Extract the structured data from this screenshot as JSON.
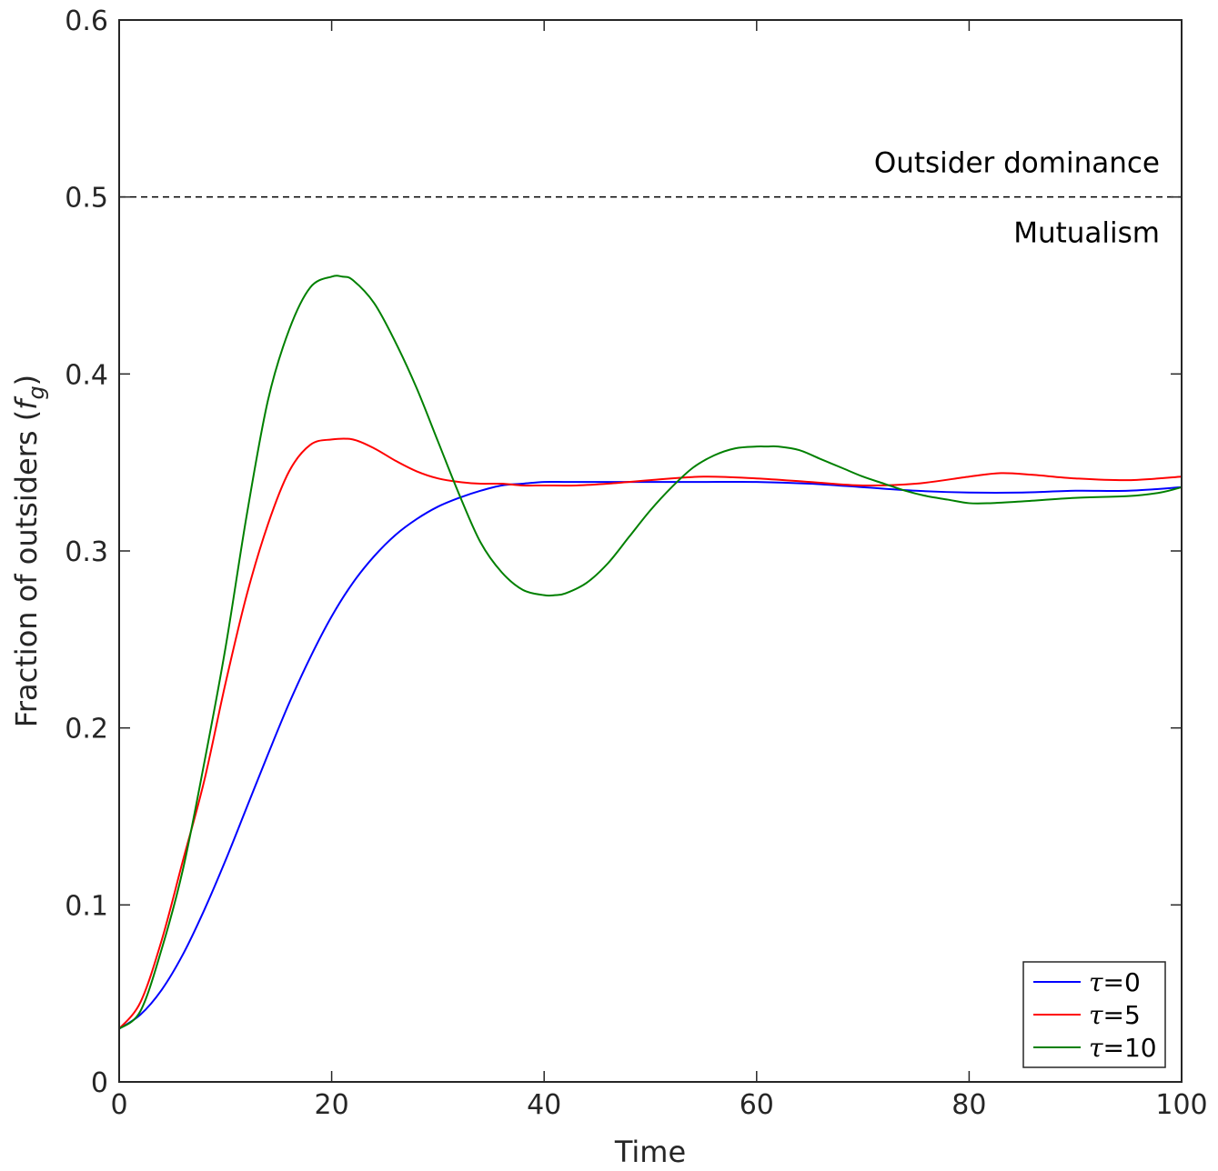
{
  "chart_data": {
    "type": "line",
    "xlabel": "Time",
    "ylabel": "Fraction of outsiders (",
    "ylabel_var": "f",
    "ylabel_sub": "g",
    "ylabel_close": ")",
    "xlim": [
      0,
      100
    ],
    "ylim": [
      0,
      0.6
    ],
    "xticks": [
      0,
      20,
      40,
      60,
      80,
      100
    ],
    "yticks": [
      0,
      0.1,
      0.2,
      0.3,
      0.4,
      0.5,
      0.6
    ],
    "xtick_labels": [
      "0",
      "20",
      "40",
      "60",
      "80",
      "100"
    ],
    "ytick_labels": [
      "0",
      "0.1",
      "0.2",
      "0.3",
      "0.4",
      "0.5",
      "0.6"
    ],
    "grid": false,
    "legend_placement": "bottom-right",
    "reference_line": {
      "y": 0.5,
      "style": "dashed",
      "color": "#000000"
    },
    "annotations": {
      "above": "Outsider dominance",
      "below": "Mutualism"
    },
    "series": [
      {
        "name_symbol": "τ",
        "name_value": "=0",
        "color": "#0000ff",
        "x": [
          0,
          2,
          4,
          6,
          8,
          10,
          12,
          14,
          16,
          18,
          20,
          22,
          24,
          26,
          28,
          30,
          32,
          34,
          36,
          38,
          40,
          42,
          45,
          50,
          55,
          60,
          65,
          70,
          75,
          80,
          85,
          90,
          95,
          100
        ],
        "y": [
          0.03,
          0.038,
          0.052,
          0.072,
          0.097,
          0.125,
          0.155,
          0.185,
          0.214,
          0.24,
          0.263,
          0.282,
          0.297,
          0.309,
          0.318,
          0.325,
          0.33,
          0.334,
          0.337,
          0.338,
          0.339,
          0.339,
          0.339,
          0.339,
          0.339,
          0.339,
          0.338,
          0.336,
          0.334,
          0.333,
          0.333,
          0.334,
          0.334,
          0.336
        ]
      },
      {
        "name_symbol": "τ",
        "name_value": "=5",
        "color": "#ff0000",
        "x": [
          0,
          2,
          4,
          6,
          8,
          10,
          12,
          14,
          16,
          18,
          20,
          22,
          24,
          26,
          28,
          30,
          32,
          34,
          36,
          38,
          40,
          43,
          46,
          50,
          55,
          60,
          65,
          70,
          75,
          80,
          83,
          86,
          90,
          95,
          100
        ],
        "y": [
          0.03,
          0.045,
          0.08,
          0.125,
          0.17,
          0.225,
          0.275,
          0.315,
          0.345,
          0.36,
          0.363,
          0.363,
          0.358,
          0.351,
          0.345,
          0.341,
          0.339,
          0.338,
          0.338,
          0.337,
          0.337,
          0.337,
          0.338,
          0.34,
          0.342,
          0.341,
          0.339,
          0.337,
          0.338,
          0.342,
          0.344,
          0.343,
          0.341,
          0.34,
          0.342
        ]
      },
      {
        "name_symbol": "τ",
        "name_value": "=10",
        "color": "#008000",
        "x": [
          0,
          2,
          4,
          6,
          8,
          10,
          12,
          14,
          16,
          18,
          20,
          21,
          22,
          24,
          26,
          28,
          30,
          32,
          34,
          36,
          38,
          40,
          41,
          42,
          44,
          46,
          48,
          50,
          52,
          54,
          56,
          58,
          60,
          61,
          62,
          64,
          66,
          68,
          70,
          72,
          74,
          76,
          78,
          80,
          82,
          85,
          90,
          95,
          98,
          100
        ],
        "y": [
          0.03,
          0.04,
          0.075,
          0.12,
          0.18,
          0.245,
          0.32,
          0.385,
          0.425,
          0.449,
          0.455,
          0.455,
          0.453,
          0.44,
          0.418,
          0.392,
          0.362,
          0.332,
          0.305,
          0.288,
          0.278,
          0.275,
          0.275,
          0.276,
          0.282,
          0.293,
          0.308,
          0.323,
          0.336,
          0.347,
          0.354,
          0.358,
          0.359,
          0.359,
          0.359,
          0.357,
          0.352,
          0.347,
          0.342,
          0.338,
          0.334,
          0.331,
          0.329,
          0.327,
          0.327,
          0.328,
          0.33,
          0.331,
          0.333,
          0.336
        ]
      }
    ]
  }
}
